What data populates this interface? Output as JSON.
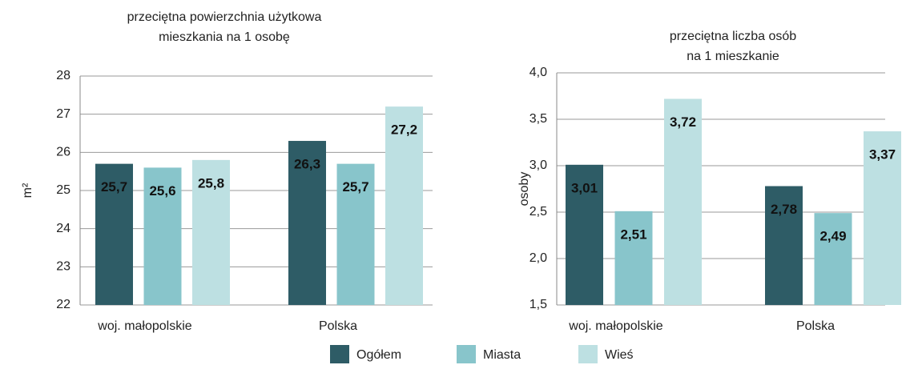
{
  "chart_data": [
    {
      "type": "bar",
      "title": "przeciętna powierzchnia użytkowa\nmieszkania na 1 osobę",
      "y_label": "m²",
      "categories": [
        "woj. małopolskie",
        "Polska"
      ],
      "series": [
        {
          "name": "Ogółem",
          "color": "#2e5c66",
          "values": [
            25.7,
            26.3
          ],
          "value_labels": [
            "25,7",
            "26,3"
          ]
        },
        {
          "name": "Miasta",
          "color": "#88c5cb",
          "values": [
            25.6,
            25.7
          ],
          "value_labels": [
            "25,6",
            "25,7"
          ]
        },
        {
          "name": "Wieś",
          "color": "#bde0e2",
          "values": [
            25.8,
            27.2
          ],
          "value_labels": [
            "25,8",
            "27,2"
          ]
        }
      ],
      "ylim": [
        22,
        28
      ],
      "yticks": [
        22,
        23,
        24,
        25,
        26,
        27,
        28
      ],
      "grid": true
    },
    {
      "type": "bar",
      "title": "przeciętna liczba osób\nna 1 mieszkanie",
      "y_label": "osoby",
      "categories": [
        "woj. małopolskie",
        "Polska"
      ],
      "series": [
        {
          "name": "Ogółem",
          "color": "#2e5c66",
          "values": [
            3.01,
            2.78
          ],
          "value_labels": [
            "3,01",
            "2,78"
          ]
        },
        {
          "name": "Miasta",
          "color": "#88c5cb",
          "values": [
            2.51,
            2.49
          ],
          "value_labels": [
            "2,51",
            "2,49"
          ]
        },
        {
          "name": "Wieś",
          "color": "#bde0e2",
          "values": [
            3.72,
            3.37
          ],
          "value_labels": [
            "3,72",
            "3,37"
          ]
        }
      ],
      "ylim": [
        1.5,
        4.0
      ],
      "yticks": [
        {
          "value": 1.5,
          "label": "1,5"
        },
        {
          "value": 2.0,
          "label": "2,0"
        },
        {
          "value": 2.5,
          "label": "2,5"
        },
        {
          "value": 3.0,
          "label": "3,0"
        },
        {
          "value": 3.5,
          "label": "3,5"
        },
        {
          "value": 4.0,
          "label": "4,0"
        }
      ],
      "grid": true
    }
  ]
}
